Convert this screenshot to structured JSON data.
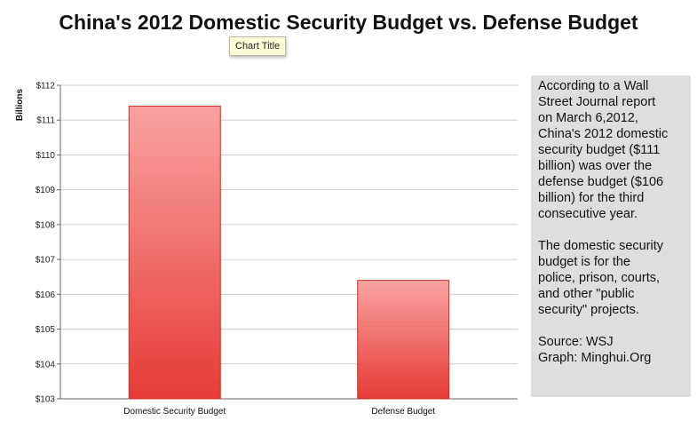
{
  "tooltip": "Chart Title",
  "chart_data": {
    "type": "bar",
    "title": "China's 2012 Domestic Security Budget vs. Defense Budget",
    "categories": [
      "Domestic Security Budget",
      "Defense Budget"
    ],
    "values": [
      111.4,
      106.4
    ],
    "ylabel": "Billions",
    "xlabel": "",
    "ylim": [
      103,
      112
    ],
    "yticks": [
      103,
      104,
      105,
      106,
      107,
      108,
      109,
      110,
      111,
      112
    ],
    "ytick_labels": [
      "$103",
      "$104",
      "$105",
      "$106",
      "$107",
      "$108",
      "$109",
      "$110",
      "$111",
      "$112"
    ],
    "grid": true,
    "colors": {
      "bar_top": "#f9a3a1",
      "bar_bottom": "#e63b36",
      "bar_edge": "#c7312c",
      "grid": "#cfcfcf"
    }
  },
  "note": {
    "paragraphs": [
      "According to a Wall\nStreet Journal report\non March 6,2012,\nChina's 2012 domestic\nsecurity budget ($111\nbillion) was over the\ndefense budget ($106\nbillion) for the third\nconsecutive year.",
      "The domestic security\nbudget is for the\npolice, prison, courts,\nand other \"public\nsecurity\" projects.",
      "Source: WSJ\nGraph: Minghui.Org"
    ]
  }
}
